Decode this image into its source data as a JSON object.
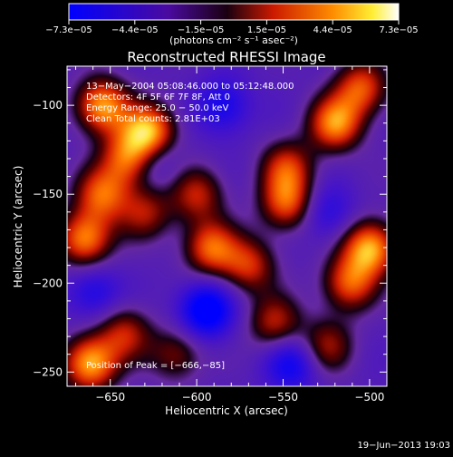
{
  "chart_data": {
    "type": "heatmap",
    "title": "Reconstructed RHESSI Image",
    "xlabel": "Heliocentric X (arcsec)",
    "ylabel": "Heliocentric Y (arcsec)",
    "x_ticks": [
      -650,
      -600,
      -550,
      -500
    ],
    "y_ticks": [
      -100,
      -150,
      -200,
      -250
    ],
    "x_tick_labels": [
      "−650",
      "−600",
      "−550",
      "−500"
    ],
    "y_tick_labels": [
      "−100",
      "−150",
      "−200",
      "−250"
    ],
    "xlim": [
      -675,
      -490
    ],
    "ylim": [
      -258,
      -78
    ],
    "colorbar": {
      "tick_labels": [
        "−7.3e−05",
        "−4.4e−05",
        "−1.5e−05",
        "1.5e−05",
        "4.4e−05",
        "7.3e−05"
      ],
      "range": [
        -7.3e-05,
        7.3e-05
      ],
      "units_label": "(photons cm⁻² s⁻¹ asec⁻²)",
      "colormap": "blue-purple-red-yellow-white"
    },
    "annotations": [
      "13−May−2004 05:08:46.000 to 05:12:48.000",
      "Detectors: 4F 5F 6F 7F 8F, Att 0",
      "Energy Range: 25.0 − 50.0 keV",
      "Clean     Total counts: 2.81E+03",
      "Position of Peak = [−666,−85]"
    ],
    "peak_position": [
      -666,
      -85
    ],
    "blobs": [
      {
        "x": -655,
        "y": -100,
        "v": 0.9
      },
      {
        "x": -628,
        "y": -115,
        "v": 1.0
      },
      {
        "x": -640,
        "y": -130,
        "v": 0.75
      },
      {
        "x": -665,
        "y": -175,
        "v": 0.85
      },
      {
        "x": -655,
        "y": -150,
        "v": 0.7
      },
      {
        "x": -630,
        "y": -160,
        "v": 0.5
      },
      {
        "x": -600,
        "y": -150,
        "v": 0.55
      },
      {
        "x": -592,
        "y": -180,
        "v": 0.75
      },
      {
        "x": -570,
        "y": -190,
        "v": 0.6
      },
      {
        "x": -548,
        "y": -155,
        "v": 0.7
      },
      {
        "x": -548,
        "y": -135,
        "v": 0.6
      },
      {
        "x": -520,
        "y": -110,
        "v": 0.85
      },
      {
        "x": -505,
        "y": -90,
        "v": 0.7
      },
      {
        "x": -500,
        "y": -180,
        "v": 0.95
      },
      {
        "x": -512,
        "y": -200,
        "v": 0.7
      },
      {
        "x": -555,
        "y": -222,
        "v": 0.55
      },
      {
        "x": -525,
        "y": -235,
        "v": 0.5
      },
      {
        "x": -662,
        "y": -245,
        "v": 0.95
      },
      {
        "x": -642,
        "y": -228,
        "v": 0.55
      },
      {
        "x": -612,
        "y": -240,
        "v": 0.45
      },
      {
        "x": -585,
        "y": -100,
        "v": -0.45
      },
      {
        "x": -595,
        "y": -215,
        "v": -0.75
      },
      {
        "x": -545,
        "y": -245,
        "v": -0.5
      },
      {
        "x": -660,
        "y": -205,
        "v": -0.4
      },
      {
        "x": -625,
        "y": -130,
        "v": -0.35
      },
      {
        "x": -525,
        "y": -160,
        "v": -0.35
      }
    ]
  },
  "footer": {
    "timestamp": "19−Jun−2013 19:03"
  }
}
